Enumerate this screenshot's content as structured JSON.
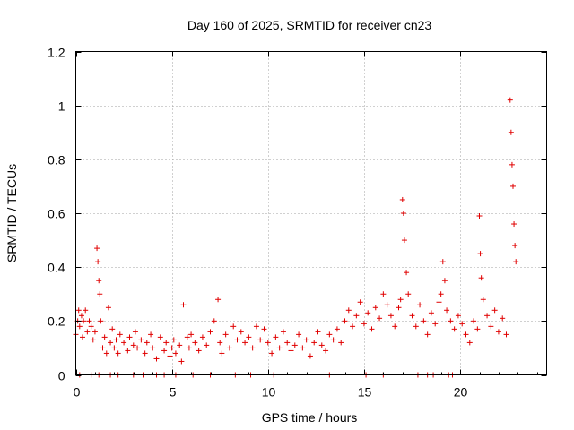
{
  "chart_data": {
    "type": "scatter",
    "title": "Day 160 of 2025, SRMTID for receiver cn23",
    "xlabel": "GPS time / hours",
    "ylabel": "SRMTID / TECUs",
    "xlim": [
      0,
      24.5
    ],
    "ylim": [
      0,
      1.2
    ],
    "x_ticks": [
      0,
      5,
      10,
      15,
      20
    ],
    "y_ticks": [
      0,
      0.2,
      0.4,
      0.6,
      0.8,
      1,
      1.2
    ],
    "x_tick_labels": [
      "0",
      "5",
      "10",
      "15",
      "20"
    ],
    "y_tick_labels": [
      "0",
      "0.2",
      "0.4",
      "0.6",
      "0.8",
      "1",
      "1.2"
    ],
    "grid": true,
    "marker": "+",
    "color": "#e00000",
    "series": [
      {
        "name": "cn23",
        "x": [
          0.0,
          0.1,
          0.15,
          0.2,
          0.3,
          0.35,
          0.4,
          0.5,
          0.6,
          0.7,
          0.8,
          0.9,
          1.0,
          1.1,
          1.15,
          1.2,
          1.25,
          1.3,
          1.4,
          1.5,
          1.6,
          1.7,
          1.8,
          1.9,
          2.0,
          2.1,
          2.2,
          2.3,
          2.5,
          2.7,
          2.8,
          3.0,
          3.1,
          3.2,
          3.4,
          3.6,
          3.7,
          3.9,
          4.0,
          4.2,
          4.4,
          4.6,
          4.7,
          4.9,
          5.0,
          5.1,
          5.2,
          5.4,
          5.5,
          5.6,
          5.8,
          5.9,
          6.0,
          6.2,
          6.4,
          6.6,
          6.8,
          7.0,
          7.2,
          7.4,
          7.5,
          7.6,
          7.8,
          8.0,
          8.2,
          8.4,
          8.6,
          8.8,
          9.0,
          9.2,
          9.4,
          9.6,
          9.8,
          10.0,
          10.2,
          10.4,
          10.6,
          10.8,
          11.0,
          11.2,
          11.4,
          11.6,
          11.8,
          12.0,
          12.2,
          12.4,
          12.6,
          12.8,
          13.0,
          13.2,
          13.4,
          13.6,
          13.8,
          14.0,
          14.2,
          14.4,
          14.6,
          14.8,
          15.0,
          15.2,
          15.4,
          15.6,
          15.8,
          16.0,
          16.2,
          16.4,
          16.6,
          16.8,
          16.9,
          17.0,
          17.05,
          17.1,
          17.2,
          17.3,
          17.5,
          17.7,
          17.9,
          18.1,
          18.3,
          18.5,
          18.7,
          18.9,
          19.0,
          19.1,
          19.2,
          19.3,
          19.5,
          19.7,
          19.9,
          20.1,
          20.3,
          20.5,
          20.7,
          20.9,
          21.0,
          21.05,
          21.1,
          21.2,
          21.4,
          21.6,
          21.8,
          22.0,
          22.2,
          22.4,
          22.6,
          22.65,
          22.7,
          22.75,
          22.8,
          22.85,
          22.9,
          0.2,
          0.8,
          1.2,
          1.8,
          2.2,
          3.0,
          3.5,
          4.2,
          4.6,
          5.2,
          6.1,
          7.0,
          8.3,
          9.1,
          10.3,
          13.2,
          15.1,
          16.0,
          17.8,
          18.3,
          18.6,
          19.4,
          19.6
        ],
        "y": [
          0.15,
          0.2,
          0.24,
          0.18,
          0.22,
          0.14,
          0.2,
          0.24,
          0.16,
          0.2,
          0.18,
          0.13,
          0.16,
          0.47,
          0.42,
          0.35,
          0.3,
          0.2,
          0.1,
          0.14,
          0.08,
          0.25,
          0.12,
          0.17,
          0.1,
          0.13,
          0.08,
          0.15,
          0.12,
          0.09,
          0.14,
          0.11,
          0.16,
          0.1,
          0.13,
          0.08,
          0.12,
          0.15,
          0.1,
          0.06,
          0.14,
          0.09,
          0.12,
          0.07,
          0.1,
          0.13,
          0.08,
          0.11,
          0.05,
          0.26,
          0.14,
          0.1,
          0.15,
          0.12,
          0.09,
          0.14,
          0.11,
          0.16,
          0.2,
          0.28,
          0.12,
          0.08,
          0.15,
          0.1,
          0.18,
          0.13,
          0.16,
          0.12,
          0.14,
          0.1,
          0.18,
          0.13,
          0.17,
          0.12,
          0.08,
          0.14,
          0.1,
          0.16,
          0.12,
          0.09,
          0.11,
          0.15,
          0.1,
          0.13,
          0.07,
          0.12,
          0.16,
          0.11,
          0.09,
          0.15,
          0.13,
          0.17,
          0.12,
          0.2,
          0.24,
          0.18,
          0.22,
          0.27,
          0.19,
          0.23,
          0.17,
          0.25,
          0.21,
          0.3,
          0.26,
          0.22,
          0.18,
          0.25,
          0.28,
          0.65,
          0.6,
          0.5,
          0.38,
          0.3,
          0.22,
          0.18,
          0.26,
          0.2,
          0.15,
          0.23,
          0.19,
          0.27,
          0.3,
          0.42,
          0.35,
          0.24,
          0.2,
          0.17,
          0.22,
          0.19,
          0.15,
          0.12,
          0.2,
          0.17,
          0.59,
          0.45,
          0.36,
          0.28,
          0.22,
          0.18,
          0.24,
          0.16,
          0.21,
          0.15,
          1.02,
          0.9,
          0.78,
          0.7,
          0.56,
          0.48,
          0.42,
          0,
          0,
          0,
          0,
          0,
          0,
          0,
          0,
          0,
          0,
          0,
          0,
          0,
          0,
          0,
          0,
          0,
          0,
          0,
          0,
          0,
          0,
          0
        ]
      }
    ]
  }
}
